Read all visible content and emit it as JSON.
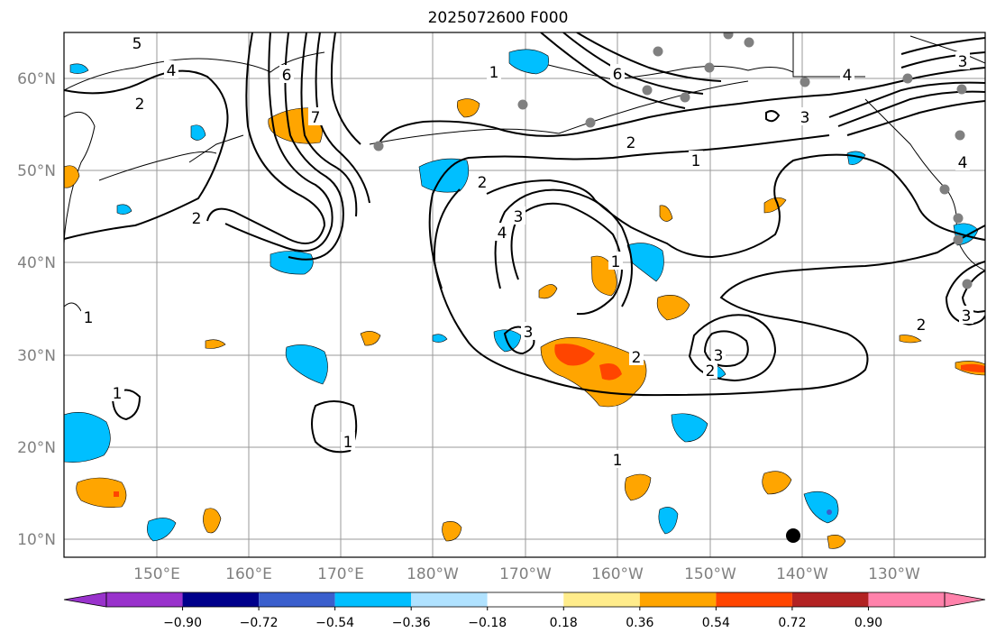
{
  "title": "2025072600 F000",
  "latitude_labels": [
    "60°N",
    "50°N",
    "40°N",
    "30°N",
    "20°N",
    "10°N"
  ],
  "longitude_labels": [
    "150°E",
    "160°E",
    "170°E",
    "180°W",
    "170°W",
    "160°W",
    "150°W",
    "140°W",
    "130°W"
  ],
  "colorbar": {
    "ticks": [
      "−0.90",
      "−0.72",
      "−0.54",
      "−0.36",
      "−0.18",
      "0.18",
      "0.36",
      "0.54",
      "0.72",
      "0.90"
    ],
    "colors": [
      "#9932cc",
      "#00008b",
      "#3a5fcd",
      "#00bfff",
      "#b0e2ff",
      "#ffffff",
      "#ffec8b",
      "#ffa500",
      "#ff4500",
      "#b22222",
      "#ff82ab"
    ]
  },
  "contour_labels": [
    "1",
    "1",
    "1",
    "1",
    "1",
    "1",
    "1",
    "2",
    "2",
    "2",
    "2",
    "2",
    "2",
    "2",
    "3",
    "3",
    "3",
    "3",
    "3",
    "3",
    "4",
    "4",
    "4",
    "4",
    "5",
    "6",
    "6",
    "7"
  ],
  "colors": {
    "grid": "#9a9a9a",
    "station": "#808080",
    "warm": "#ffa500",
    "hot": "#ff4500",
    "cool": "#00bfff"
  }
}
